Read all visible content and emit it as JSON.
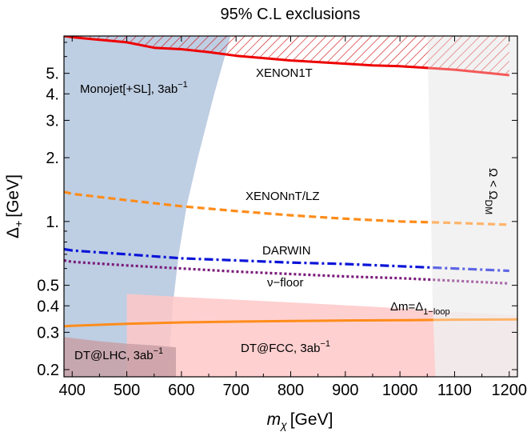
{
  "chart_data": {
    "type": "area",
    "title": "95% C.L exclusions",
    "xlabel": {
      "main": "m",
      "sub": "χ",
      "unit": "[GeV]"
    },
    "ylabel": {
      "main": "Δ",
      "sub": "+",
      "unit": "[GeV]"
    },
    "xlim": [
      385,
      1215
    ],
    "ylim": [
      0.185,
      7.5
    ],
    "yscale": "log",
    "x_ticks": [
      400,
      500,
      600,
      700,
      800,
      900,
      1000,
      1100,
      1200
    ],
    "y_ticks": [
      0.2,
      0.3,
      0.4,
      0.5,
      1,
      2,
      3,
      4,
      5
    ],
    "y_tick_labels": [
      "0.2",
      "0.3",
      "0.4",
      "0.5",
      "1.",
      "2.",
      "3.",
      "4.",
      "5."
    ],
    "grid": false,
    "regions": [
      {
        "name": "Monojet[+SL], 3ab",
        "label_sup": "−1",
        "color": "#b7c9e0",
        "boundary": [
          [
            385,
            7.5
          ],
          [
            690,
            7.5
          ],
          [
            660,
            4.0
          ],
          [
            630,
            2.0
          ],
          [
            610,
            1.2
          ],
          [
            595,
            0.7
          ],
          [
            585,
            0.42
          ],
          [
            575,
            0.185
          ],
          [
            385,
            0.185
          ]
        ]
      },
      {
        "name": "DT@FCC, 3ab",
        "label_sup": "−1",
        "color": "#ffc8c8",
        "boundary": [
          [
            500,
            0.185
          ],
          [
            500,
            0.455
          ],
          [
            600,
            0.44
          ],
          [
            800,
            0.415
          ],
          [
            1000,
            0.39
          ],
          [
            1100,
            0.375
          ],
          [
            1215,
            0.36
          ],
          [
            1215,
            0.185
          ]
        ]
      },
      {
        "name": "DT@LHC, 3ab",
        "label_sup": "−1",
        "color": "#c9a0a6",
        "boundary": [
          [
            385,
            0.185
          ],
          [
            385,
            0.285
          ],
          [
            450,
            0.272
          ],
          [
            500,
            0.265
          ],
          [
            550,
            0.26
          ],
          [
            590,
            0.255
          ],
          [
            590,
            0.185
          ]
        ]
      },
      {
        "name": "Ω < Ω",
        "label_sub": "DM",
        "color": "#e4e4e4",
        "boundary": [
          [
            1050,
            7.5
          ],
          [
            1215,
            7.5
          ],
          [
            1215,
            0.185
          ],
          [
            1065,
            0.185
          ],
          [
            1060,
            0.4
          ],
          [
            1055,
            2.0
          ]
        ]
      }
    ],
    "series": [
      {
        "name": "XENON1T",
        "color": "#ee0000",
        "style": "solid",
        "hatched_above": true,
        "x": [
          385,
          400,
          450,
          500,
          550,
          600,
          650,
          700,
          750,
          800,
          850,
          900,
          950,
          1000,
          1050,
          1100,
          1150,
          1200
        ],
        "y": [
          7.5,
          7.4,
          7.2,
          7.0,
          6.6,
          6.5,
          6.3,
          6.05,
          5.9,
          5.75,
          5.65,
          5.55,
          5.45,
          5.4,
          5.3,
          5.2,
          5.05,
          4.9
        ]
      },
      {
        "name": "XENONnT/LZ",
        "color": "#ff8c1a",
        "style": "dashed",
        "x": [
          385,
          400,
          500,
          600,
          700,
          800,
          900,
          1000,
          1100,
          1200
        ],
        "y": [
          1.38,
          1.35,
          1.26,
          1.18,
          1.12,
          1.07,
          1.03,
          1.0,
          0.985,
          0.965
        ]
      },
      {
        "name": "DARWIN",
        "color": "#0a14d8",
        "style": "dashdot",
        "x": [
          385,
          400,
          500,
          600,
          700,
          800,
          900,
          1000,
          1100,
          1200
        ],
        "y": [
          0.74,
          0.73,
          0.7,
          0.67,
          0.655,
          0.64,
          0.63,
          0.615,
          0.6,
          0.585
        ]
      },
      {
        "name": "ν−floor",
        "color": "#7a1a7a",
        "style": "dotted",
        "x": [
          385,
          400,
          500,
          600,
          700,
          800,
          900,
          1000,
          1100,
          1200
        ],
        "y": [
          0.655,
          0.645,
          0.62,
          0.6,
          0.58,
          0.565,
          0.55,
          0.54,
          0.525,
          0.51
        ]
      },
      {
        "name": "Δm=Δ",
        "label_sub": "1−loop",
        "color": "#ff8c1a",
        "style": "solid",
        "x": [
          385,
          400,
          500,
          600,
          700,
          800,
          900,
          1000,
          1100,
          1215
        ],
        "y": [
          0.32,
          0.322,
          0.329,
          0.334,
          0.337,
          0.339,
          0.341,
          0.342,
          0.344,
          0.345
        ]
      }
    ]
  }
}
